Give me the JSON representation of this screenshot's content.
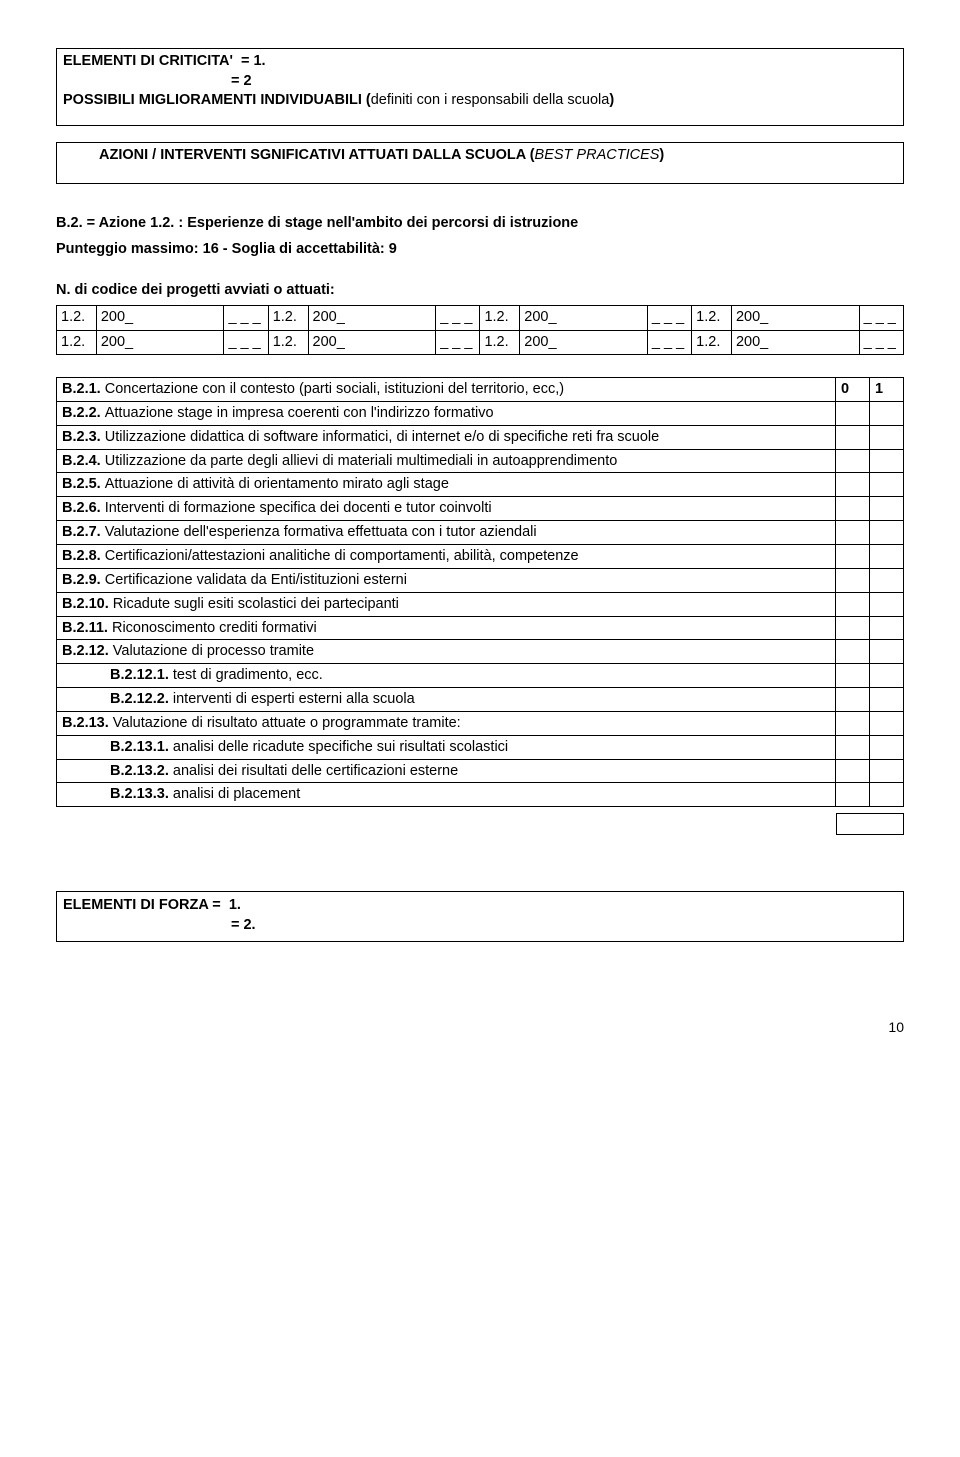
{
  "crit": {
    "line1_label": "ELEMENTI DI CRITICITA'",
    "line1_val": "= 1.",
    "line2_val": "= 2"
  },
  "improve": {
    "prefix": "POSSIBILI MIGLIORAMENTI INDIVIDUABILI (",
    "mid": "definiti con i  responsabili della scuola",
    "suffix": ")"
  },
  "actions": {
    "prefix": "AZIONI  /  INTERVENTI SGNIFICATIVI ATTUATI DALLA SCUOLA (",
    "mid": "BEST PRACTICES",
    "suffix": ")"
  },
  "b2": {
    "title": "B.2. = Azione 1.2. : Esperienze di stage nell'ambito dei percorsi di istruzione",
    "sub": "Punteggio massimo: 16  - Soglia di accettabilità: 9"
  },
  "codice_label": "N. di codice dei progetti avviati o attuati:",
  "code_cells": {
    "lbl": "1.2.",
    "yr": "200_",
    "sp": "_ _ _"
  },
  "rows": [
    {
      "t": "B.2.1. Concertazione  con il contesto (parti sociali, istituzioni del territorio, ecc,)",
      "a": "0",
      "b": "1",
      "abold": true
    },
    {
      "t": "B.2.2. Attuazione stage in impresa coerenti con l'indirizzo formativo",
      "a": "",
      "b": "",
      "abold": true
    },
    {
      "t": "B.2.3. Utilizzazione didattica di software informatici, di internet e/o di specifiche reti fra scuole",
      "a": "",
      "b": "",
      "abold": true
    },
    {
      "t": "B.2.4. Utilizzazione da parte degli allievi di materiali multimediali in autoapprendimento",
      "a": "",
      "b": "",
      "abold": true
    },
    {
      "t": "B.2.5.  Attuazione di attività di orientamento mirato agli stage",
      "a": "",
      "b": "",
      "abold": true
    },
    {
      "t": "B.2.6.  Interventi di formazione specifica dei docenti e tutor coinvolti",
      "a": "",
      "b": "",
      "abold": true
    },
    {
      "t": "B.2.7. Valutazione dell'esperienza formativa effettuata con i tutor aziendali",
      "a": "",
      "b": "",
      "abold": true
    },
    {
      "t": "B.2.8.  Certificazioni/attestazioni analitiche di comportamenti, abilità, competenze",
      "a": "",
      "b": "",
      "abold": true
    },
    {
      "t": "B.2.9.  Certificazione  validata da Enti/istituzioni  esterni",
      "a": "",
      "b": "",
      "abold": true
    },
    {
      "t": "B.2.10. Ricadute sugli esiti scolastici dei partecipanti",
      "a": "",
      "b": "",
      "abold": true
    },
    {
      "t": "B.2.11. Riconoscimento crediti formativi",
      "a": "",
      "b": "",
      "abold": true
    },
    {
      "t": "B.2.12. Valutazione di processo tramite",
      "a": "",
      "b": "",
      "abold": true
    },
    {
      "t": "B.2.12.1. test di gradimento, ecc.",
      "a": "",
      "b": "",
      "indent": true
    },
    {
      "t": "B.2.12.2.  interventi di esperti esterni alla scuola",
      "a": "",
      "b": "",
      "indent": true
    },
    {
      "t": "B.2.13. Valutazione di risultato attuate o programmate  tramite:",
      "a": "",
      "b": "",
      "abold": true
    },
    {
      "t": "B.2.13.1. analisi delle ricadute specifiche sui risultati scolastici",
      "a": "",
      "b": "",
      "indent": true
    },
    {
      "t": "B.2.13.2. analisi dei risultati delle certificazioni esterne",
      "a": "",
      "b": "",
      "indent": true
    },
    {
      "t": "B.2.13.3. analisi di placement",
      "a": "",
      "b": "",
      "indent": true
    }
  ],
  "forza": {
    "line1_label": "ELEMENTI  DI FORZA =",
    "line1_val": "1.",
    "line2_val": "= 2."
  },
  "page": "10"
}
